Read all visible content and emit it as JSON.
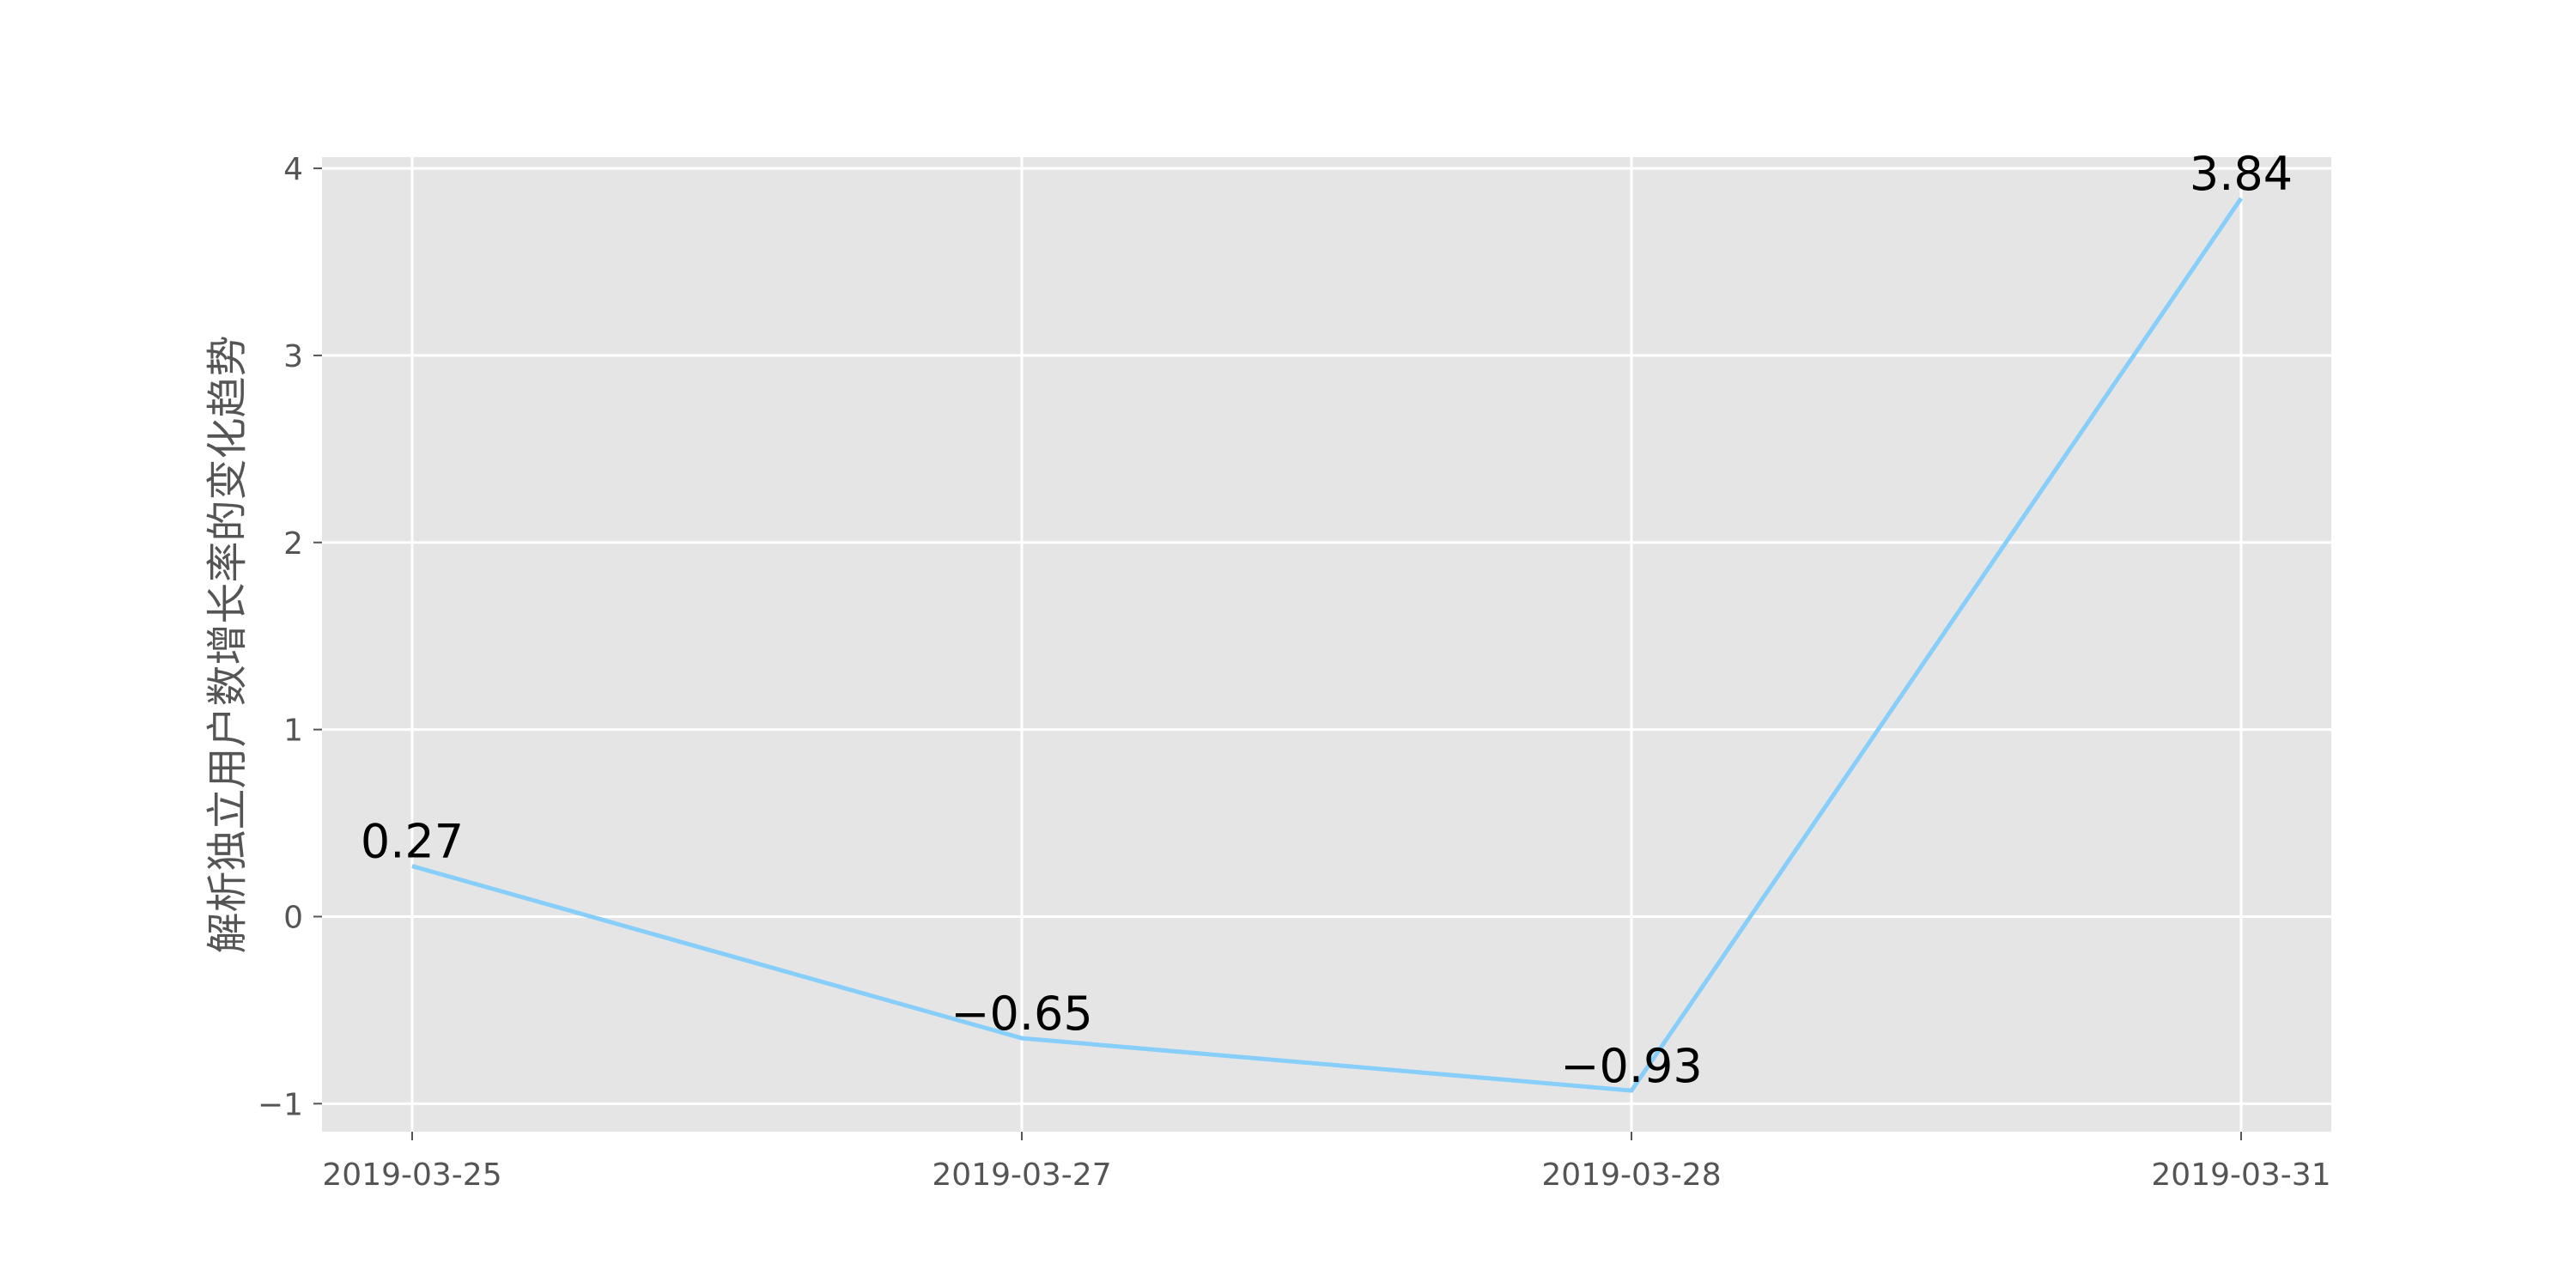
{
  "chart_data": {
    "type": "line",
    "categories": [
      "2019-03-25",
      "2019-03-27",
      "2019-03-28",
      "2019-03-31"
    ],
    "series": [
      {
        "values": [
          0.27,
          -0.65,
          -0.93,
          3.84
        ],
        "color": "#87CEFA"
      }
    ],
    "data_labels": [
      "0.27",
      "-0.65",
      "-0.93",
      "3.84"
    ],
    "title": "",
    "xlabel": "",
    "ylabel": "解析独立用户数增长率的变化趋势",
    "ylim": [
      -1.15,
      4.06
    ],
    "yticks": [
      -1,
      0,
      1,
      2,
      3,
      4
    ],
    "grid": true,
    "background_color": "#E5E5E5",
    "grid_color": "#FFFFFF"
  }
}
